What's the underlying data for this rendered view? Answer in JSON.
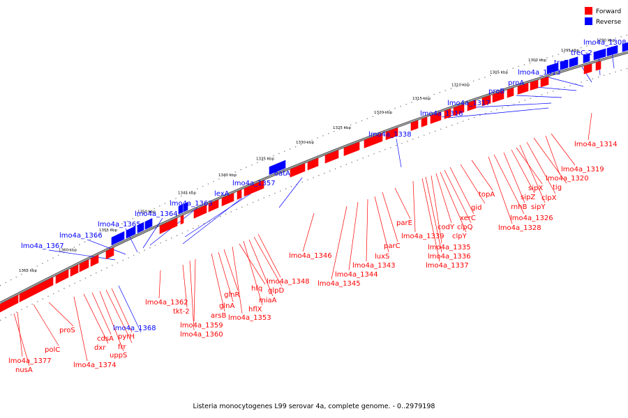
{
  "caption": "Listeria monocytogenes L99 serovar 4a, complete genome. - 0..2979198",
  "legend": [
    {
      "label": "Forward",
      "color": "#ff0000"
    },
    {
      "label": "Reverse",
      "color": "#0000ff"
    }
  ],
  "colors": {
    "forward": "#ff0000",
    "reverse": "#0000ff",
    "backbone": "#666666"
  },
  "ticks": [
    "1290 kbp",
    "1295 kbp",
    "1300 kbp",
    "1305 kbp",
    "1310 kbp",
    "1315 kbp",
    "1320 kbp",
    "1325 kbp",
    "1330 kbp",
    "1335 kbp",
    "1340 kbp",
    "1345 kbp",
    "1350 kbp",
    "1355 kbp",
    "1360 kbp",
    "1365 kbp"
  ],
  "reverse_genes": [
    "lmo4a_1308",
    "treC-2",
    "treB",
    "lmo4a_1313",
    "proA",
    "proB",
    "lmo4a_1317",
    "lmo4a_1318",
    "lmo4a_1338",
    "oatA",
    "lmo4a_1357",
    "lexA",
    "lmo4a_1363",
    "lmo4a_1364",
    "lmo4a_1365",
    "lmo4a_1366",
    "lmo4a_1367",
    "lmo4a_1368"
  ],
  "forward_genes": [
    "lmo4a_1314",
    "lmo4a_1319",
    "lmo4a_1320",
    "tig",
    "clpX",
    "sipY",
    "sipX",
    "sipZ",
    "rnhB",
    "lmo4a_1326",
    "lmo4a_1328",
    "topA",
    "gid",
    "xerC",
    "clpQ",
    "clpY",
    "codY",
    "lmo4a_1335",
    "lmo4a_1336",
    "lmo4a_1337",
    "lmo4a_1339",
    "parE",
    "parC",
    "luxS",
    "lmo4a_1343",
    "lmo4a_1344",
    "lmo4a_1345",
    "lmo4a_1346",
    "lmo4a_1348",
    "glpD",
    "miaA",
    "hflX",
    "hfq",
    "lmo4a_1353",
    "glnR",
    "glnA",
    "arsB",
    "lmo4a_1359",
    "lmo4a_1360",
    "tkt-2",
    "lmo4a_1362",
    "pyrH",
    "frr",
    "uppS",
    "cdsA",
    "dxr",
    "lmo4a_1374",
    "proS",
    "polC",
    "lmo4a_1377",
    "nusA"
  ]
}
